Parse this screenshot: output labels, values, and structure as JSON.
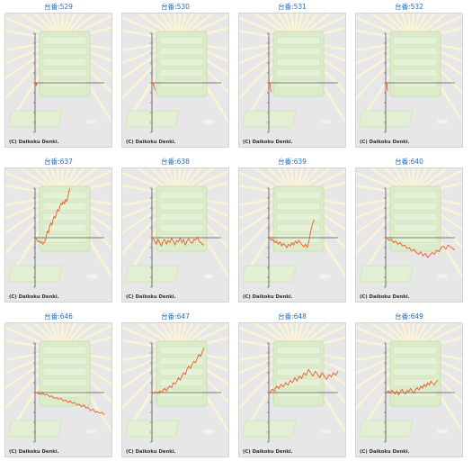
{
  "copyright": "(C) Daikoku Denki.",
  "colors": {
    "line": "#ee5a2a",
    "axis": "#555555",
    "title": "#2f6fb0",
    "panel_bg": "#e7e7e7"
  },
  "chart_data": [
    {
      "type": "line",
      "title": "台番:529",
      "x": [
        0,
        0.1,
        0.2,
        0.3,
        0.4,
        0.5,
        0.6,
        0.7,
        0.8,
        0.9,
        1.0
      ],
      "y": [
        0,
        -1,
        -3,
        -1,
        -2,
        0,
        -2,
        -3,
        -1,
        -2,
        -1
      ]
    },
    {
      "type": "line",
      "title": "台番:530",
      "x": [
        0,
        0.5,
        1.0,
        1.5,
        2.0,
        2.5,
        3.0,
        3.5,
        4.0
      ],
      "y": [
        0,
        -1,
        -3,
        -2,
        -4,
        -5,
        -6,
        -8,
        -9
      ]
    },
    {
      "type": "line",
      "title": "台番:531",
      "x": [
        0,
        0.5,
        1.0,
        1.5,
        2.0,
        2.5
      ],
      "y": [
        0,
        -2,
        -4,
        -7,
        -9,
        -11
      ]
    },
    {
      "type": "line",
      "title": "台番:532",
      "x": [
        0,
        0.5,
        1.0,
        1.5,
        2.0
      ],
      "y": [
        0,
        -2,
        -5,
        -8,
        -10
      ]
    },
    {
      "type": "line",
      "title": "台番:637",
      "x": [
        0,
        2,
        4,
        6,
        8,
        10,
        12,
        14,
        16,
        18,
        20,
        22,
        24,
        26,
        28,
        30,
        32,
        34,
        36,
        38,
        40,
        42,
        44,
        46,
        48,
        50,
        52,
        54,
        56,
        58,
        60
      ],
      "y": [
        0,
        -3,
        -5,
        -4,
        -6,
        -5,
        -8,
        -6,
        -4,
        2,
        8,
        6,
        14,
        18,
        15,
        22,
        26,
        24,
        30,
        34,
        32,
        38,
        42,
        40,
        44,
        41,
        46,
        44,
        50,
        56,
        60
      ]
    },
    {
      "type": "line",
      "title": "台番:638",
      "x": [
        0,
        3,
        6,
        9,
        12,
        15,
        18,
        21,
        24,
        27,
        30,
        33,
        36,
        39,
        42,
        45,
        48,
        51,
        54,
        57,
        60,
        63,
        66,
        69,
        72,
        75,
        78,
        81,
        84,
        87,
        90
      ],
      "y": [
        0,
        -4,
        -8,
        -2,
        -6,
        -10,
        -4,
        -2,
        -8,
        -3,
        -6,
        -1,
        -4,
        -9,
        -3,
        -5,
        0,
        -6,
        -2,
        -9,
        -4,
        -1,
        -5,
        -7,
        -2,
        -3,
        1,
        -4,
        -6,
        -8,
        -9
      ]
    },
    {
      "type": "line",
      "title": "台番:639",
      "x": [
        0,
        3,
        6,
        9,
        12,
        15,
        18,
        21,
        24,
        27,
        30,
        33,
        36,
        39,
        42,
        45,
        48,
        51,
        54,
        57,
        60,
        63,
        66,
        69,
        72,
        75,
        78
      ],
      "y": [
        0,
        -3,
        -2,
        -6,
        -4,
        -8,
        -5,
        -10,
        -7,
        -9,
        -12,
        -8,
        -10,
        -6,
        -9,
        -4,
        -7,
        -3,
        -6,
        -9,
        -11,
        -8,
        -12,
        -4,
        8,
        16,
        22
      ]
    },
    {
      "type": "line",
      "title": "台番:640",
      "x": [
        0,
        4,
        8,
        12,
        16,
        20,
        24,
        28,
        32,
        36,
        40,
        44,
        48,
        52,
        56,
        60,
        64,
        68,
        72,
        76,
        80,
        84,
        88,
        92,
        96,
        100,
        104,
        108,
        112,
        116,
        120
      ],
      "y": [
        0,
        -3,
        -2,
        -6,
        -4,
        -8,
        -6,
        -10,
        -9,
        -13,
        -12,
        -16,
        -14,
        -18,
        -20,
        -17,
        -22,
        -19,
        -24,
        -21,
        -18,
        -20,
        -15,
        -17,
        -12,
        -10,
        -14,
        -9,
        -11,
        -13,
        -15
      ]
    },
    {
      "type": "line",
      "title": "台番:646",
      "x": [
        0,
        4,
        8,
        12,
        16,
        20,
        24,
        28,
        32,
        36,
        40,
        44,
        48,
        52,
        56,
        60,
        64,
        68,
        72,
        76,
        80,
        84,
        88,
        92,
        96,
        100,
        104,
        108,
        112,
        116,
        120
      ],
      "y": [
        0,
        -1,
        -2,
        -1,
        -3,
        -2,
        -5,
        -4,
        -7,
        -6,
        -8,
        -7,
        -10,
        -9,
        -12,
        -10,
        -13,
        -12,
        -15,
        -14,
        -17,
        -15,
        -19,
        -18,
        -22,
        -20,
        -24,
        -23,
        -25,
        -24,
        -27
      ]
    },
    {
      "type": "line",
      "title": "台番:647",
      "x": [
        0,
        3,
        6,
        9,
        12,
        15,
        18,
        21,
        24,
        27,
        30,
        33,
        36,
        39,
        42,
        45,
        48,
        51,
        54,
        57,
        60,
        63,
        66,
        69,
        72,
        75,
        78,
        81,
        84,
        87,
        90
      ],
      "y": [
        0,
        -1,
        1,
        -1,
        2,
        0,
        3,
        5,
        2,
        6,
        8,
        6,
        12,
        10,
        14,
        18,
        15,
        20,
        24,
        22,
        28,
        32,
        29,
        34,
        38,
        36,
        42,
        46,
        44,
        50,
        54
      ]
    },
    {
      "type": "line",
      "title": "台番:648",
      "x": [
        0,
        4,
        8,
        12,
        16,
        20,
        24,
        28,
        32,
        36,
        40,
        44,
        48,
        52,
        56,
        60,
        64,
        68,
        72,
        76,
        80,
        84,
        88,
        92,
        96,
        100,
        104,
        108,
        112,
        116,
        120
      ],
      "y": [
        0,
        4,
        2,
        8,
        5,
        10,
        7,
        12,
        9,
        15,
        12,
        18,
        14,
        20,
        17,
        24,
        21,
        28,
        24,
        20,
        26,
        22,
        18,
        24,
        20,
        16,
        22,
        19,
        24,
        21,
        26
      ]
    },
    {
      "type": "line",
      "title": "台番:649",
      "x": [
        0,
        3,
        6,
        9,
        12,
        15,
        18,
        21,
        24,
        27,
        30,
        33,
        36,
        39,
        42,
        45,
        48,
        51,
        54,
        57,
        60,
        63,
        66,
        69,
        72,
        75,
        78,
        81,
        84,
        87,
        90
      ],
      "y": [
        0,
        2,
        -1,
        3,
        1,
        -2,
        2,
        -3,
        1,
        4,
        0,
        -2,
        3,
        1,
        5,
        2,
        -1,
        4,
        6,
        3,
        8,
        5,
        10,
        7,
        12,
        9,
        14,
        11,
        9,
        13,
        15
      ]
    }
  ]
}
